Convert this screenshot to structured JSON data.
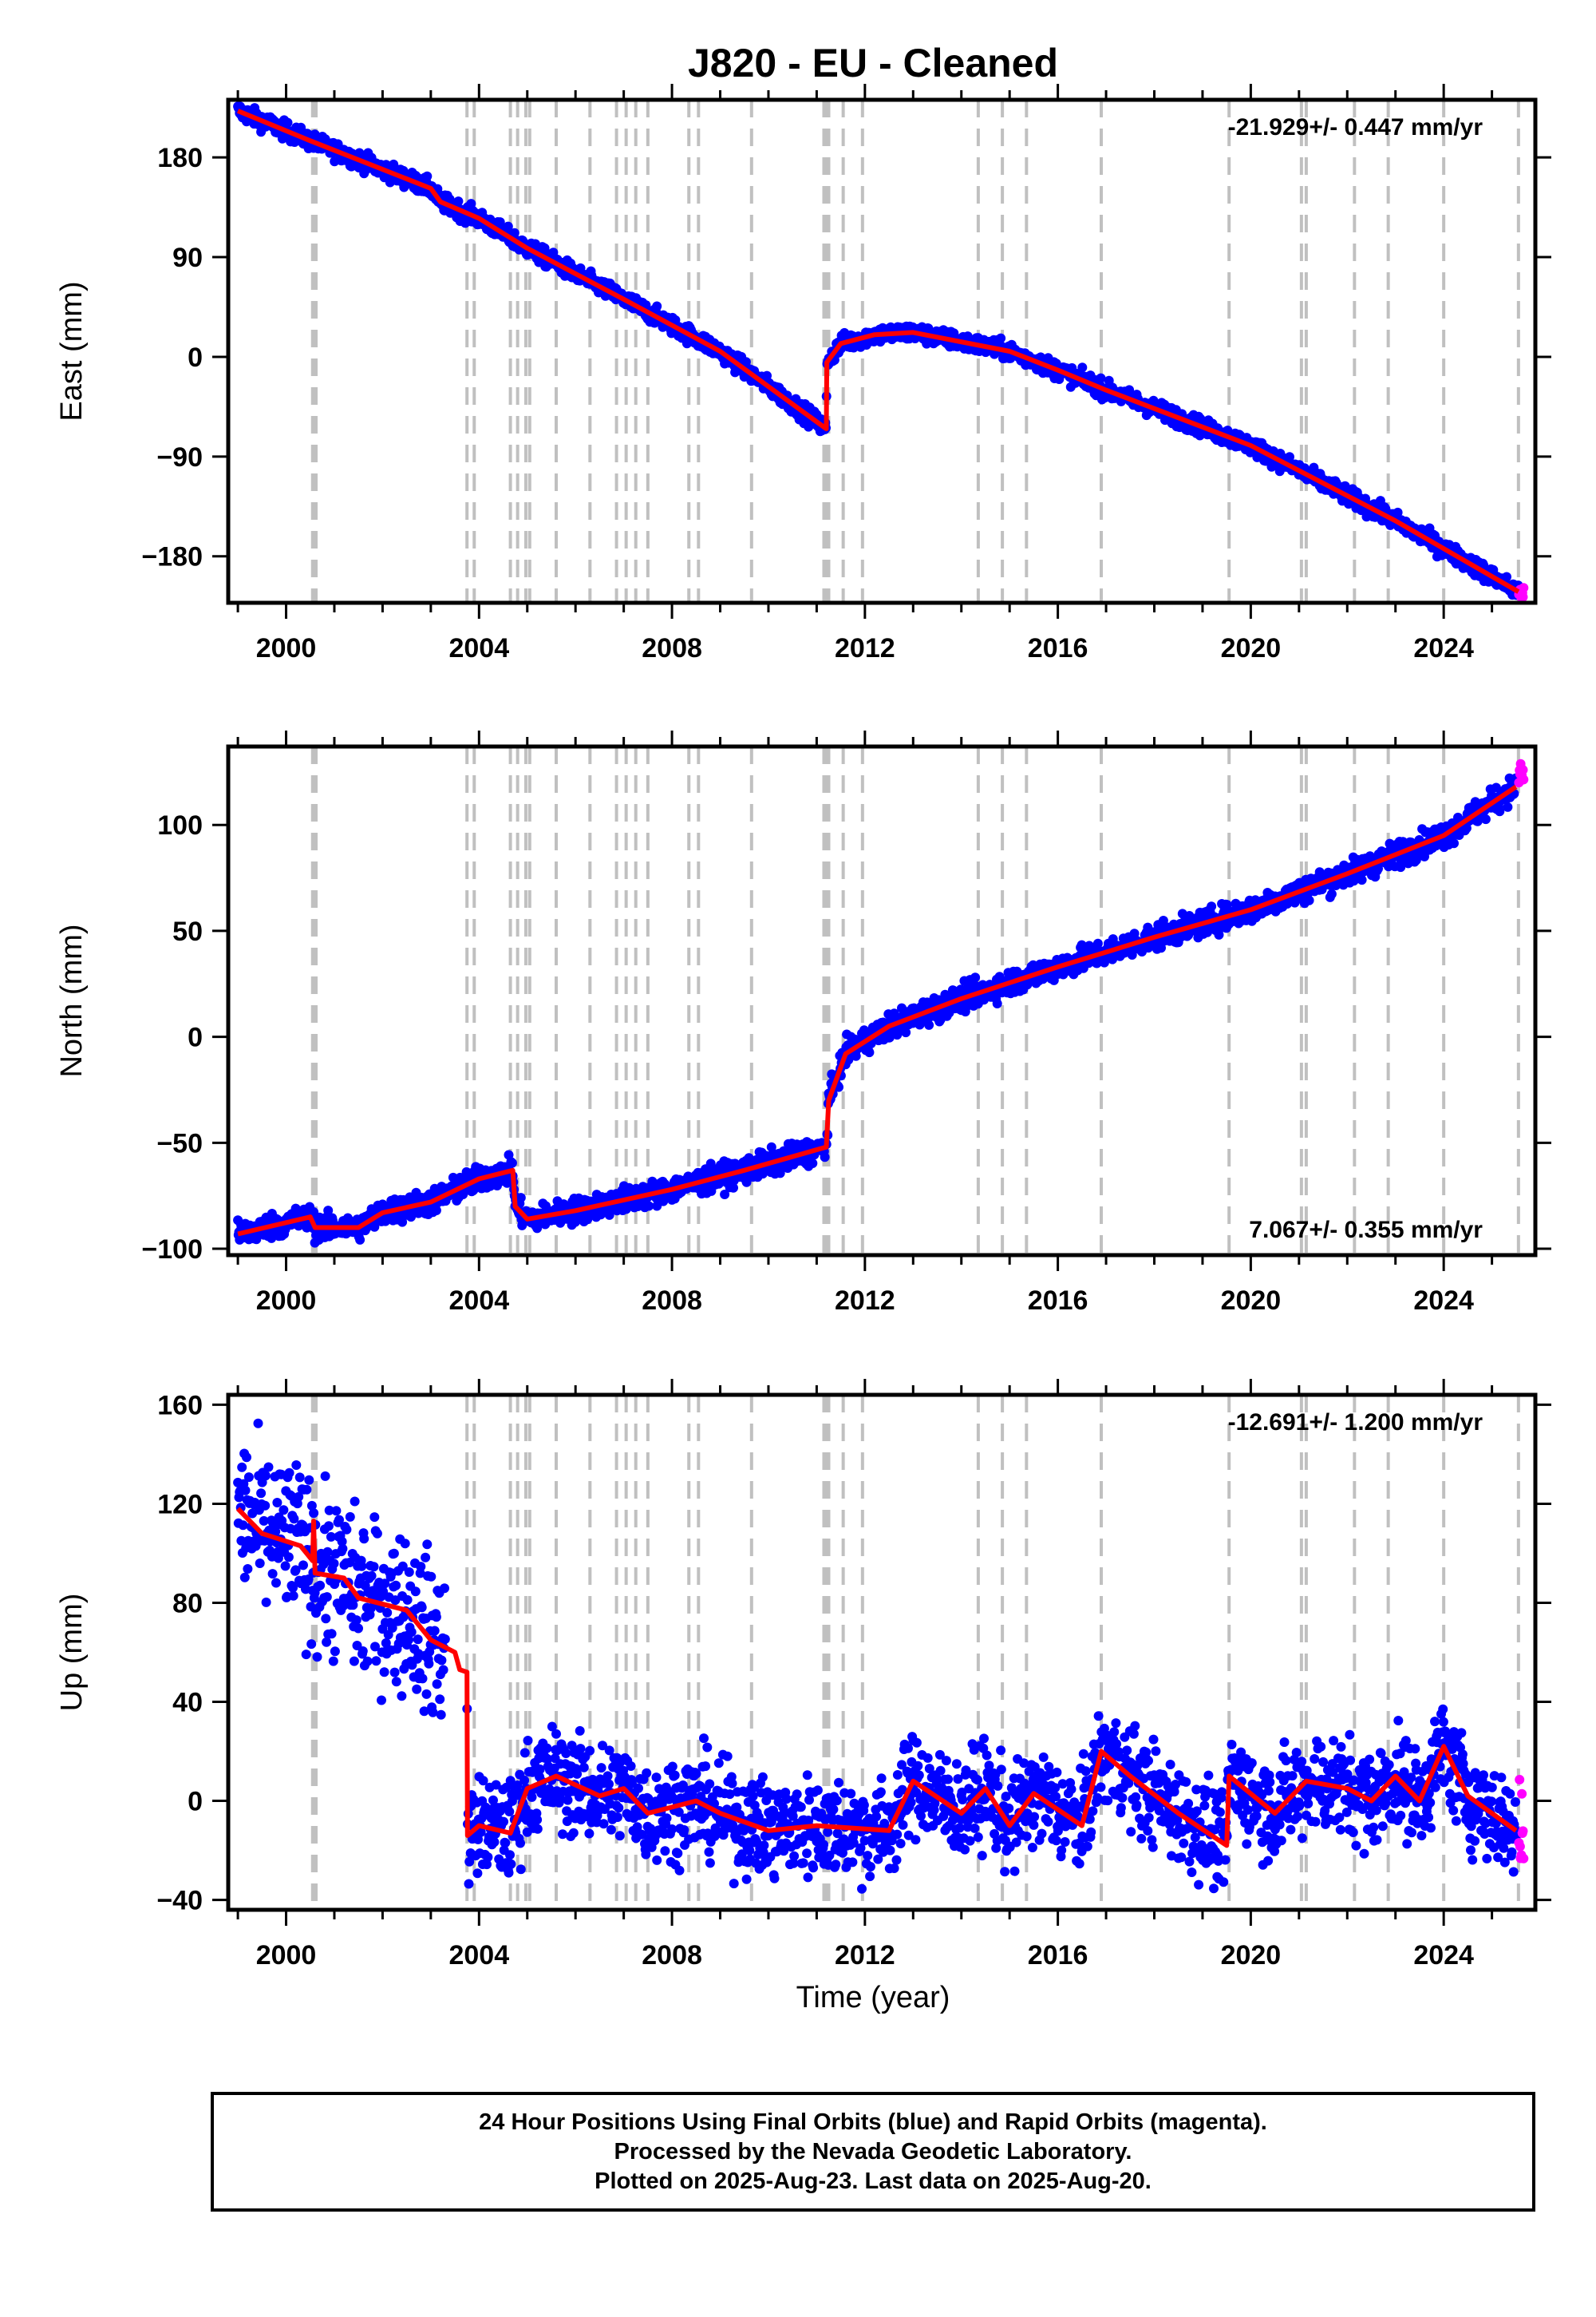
{
  "chart_data": {
    "title": "J820  - EU - Cleaned",
    "xlabel": "Time (year)",
    "xlim": [
      1998.8,
      2025.9
    ],
    "xticks": [
      2000,
      2004,
      2008,
      2012,
      2016,
      2020,
      2024
    ],
    "colors": {
      "final": "#0000ff",
      "rapid": "#ff00ff",
      "model": "#ff0000",
      "steps": "#c0c0c0"
    },
    "steps": [
      2000.55,
      2000.58,
      2000.62,
      2003.75,
      2003.9,
      2004.65,
      2004.8,
      2004.97,
      2005.05,
      2005.6,
      2006.3,
      2006.85,
      2007.05,
      2007.25,
      2007.5,
      2008.35,
      2008.55,
      2009.65,
      2011.15,
      2011.2,
      2011.25,
      2011.55,
      2011.95,
      2014.35,
      2014.85,
      2015.35,
      2016.9,
      2019.55,
      2021.05,
      2021.15,
      2022.15,
      2022.85,
      2024.0,
      2025.55
    ],
    "panels": [
      {
        "type": "scatter",
        "ylabel": "East (mm)",
        "ylim": [
          -222,
          232
        ],
        "yticks": [
          -180,
          -90,
          0,
          90,
          180
        ],
        "ytick_labels": [
          "−180",
          "−90",
          "0",
          "90",
          "180"
        ],
        "rate_label": "-21.929+/- 0.447 mm/yr",
        "rate_pos": "top-right",
        "noise": 4,
        "model": [
          [
            1999.0,
            222
          ],
          [
            2000.5,
            195
          ],
          [
            2003.0,
            152
          ],
          [
            2003.2,
            140
          ],
          [
            2004.0,
            125
          ],
          [
            2005.0,
            98
          ],
          [
            2007.0,
            52
          ],
          [
            2009.0,
            5
          ],
          [
            2011.2,
            -65
          ],
          [
            2011.21,
            -5
          ],
          [
            2011.5,
            12
          ],
          [
            2012.2,
            20
          ],
          [
            2013.0,
            22
          ],
          [
            2015.0,
            5
          ],
          [
            2016.0,
            -12
          ],
          [
            2017.0,
            -30
          ],
          [
            2020.0,
            -80
          ],
          [
            2023.0,
            -148
          ],
          [
            2025.55,
            -212
          ]
        ]
      },
      {
        "type": "scatter",
        "ylabel": "North (mm)",
        "ylim": [
          -103,
          137
        ],
        "yticks": [
          -100,
          -50,
          0,
          50,
          100
        ],
        "ytick_labels": [
          "−100",
          "−50",
          "0",
          "50",
          "100"
        ],
        "rate_label": "7.067+/- 0.355 mm/yr",
        "rate_pos": "bottom-right",
        "noise": 3,
        "model": [
          [
            1999.0,
            -93
          ],
          [
            2000.5,
            -85
          ],
          [
            2000.6,
            -90
          ],
          [
            2001.5,
            -90
          ],
          [
            2002.0,
            -83
          ],
          [
            2003.0,
            -78
          ],
          [
            2004.0,
            -67
          ],
          [
            2004.7,
            -63
          ],
          [
            2004.75,
            -80
          ],
          [
            2005.0,
            -86
          ],
          [
            2006.0,
            -82
          ],
          [
            2008.0,
            -72
          ],
          [
            2009.5,
            -63
          ],
          [
            2011.2,
            -52
          ],
          [
            2011.25,
            -30
          ],
          [
            2011.6,
            -8
          ],
          [
            2012.5,
            5
          ],
          [
            2014.0,
            18
          ],
          [
            2016.0,
            33
          ],
          [
            2017.0,
            40
          ],
          [
            2018.0,
            47
          ],
          [
            2020.0,
            60
          ],
          [
            2022.0,
            77
          ],
          [
            2024.0,
            95
          ],
          [
            2025.5,
            118
          ]
        ]
      },
      {
        "type": "scatter",
        "ylabel": "Up (mm)",
        "ylim": [
          -44,
          164
        ],
        "yticks": [
          -40,
          0,
          40,
          80,
          120,
          160
        ],
        "ytick_labels": [
          "−40",
          "0",
          "40",
          "80",
          "120",
          "160"
        ],
        "rate_label": "-12.691+/- 1.200 mm/yr",
        "rate_pos": "top-right",
        "noise": 10,
        "data_gap": [
          2003.3,
          2003.75
        ],
        "model": [
          [
            1999.0,
            118
          ],
          [
            1999.5,
            108
          ],
          [
            2000.3,
            103
          ],
          [
            2000.55,
            97
          ],
          [
            2000.57,
            113
          ],
          [
            2000.6,
            92
          ],
          [
            2001.2,
            90
          ],
          [
            2001.5,
            82
          ],
          [
            2002.5,
            77
          ],
          [
            2003.0,
            65
          ],
          [
            2003.5,
            60
          ],
          [
            2003.6,
            53
          ],
          [
            2003.75,
            52
          ],
          [
            2003.76,
            -14
          ],
          [
            2004.0,
            -10
          ],
          [
            2004.65,
            -13
          ],
          [
            2005.0,
            5
          ],
          [
            2005.6,
            10
          ],
          [
            2006.5,
            2
          ],
          [
            2007.0,
            5
          ],
          [
            2007.5,
            -5
          ],
          [
            2008.5,
            0
          ],
          [
            2009.0,
            -5
          ],
          [
            2010.0,
            -12
          ],
          [
            2011.0,
            -10
          ],
          [
            2012.5,
            -12
          ],
          [
            2013.0,
            8
          ],
          [
            2014.0,
            -5
          ],
          [
            2014.5,
            5
          ],
          [
            2015.0,
            -10
          ],
          [
            2015.5,
            3
          ],
          [
            2016.5,
            -10
          ],
          [
            2016.9,
            20
          ],
          [
            2017.5,
            10
          ],
          [
            2018.5,
            -5
          ],
          [
            2019.5,
            -18
          ],
          [
            2019.55,
            10
          ],
          [
            2020.5,
            -5
          ],
          [
            2021.15,
            8
          ],
          [
            2022.0,
            5
          ],
          [
            2022.5,
            0
          ],
          [
            2023.0,
            10
          ],
          [
            2023.5,
            0
          ],
          [
            2024.0,
            22
          ],
          [
            2024.5,
            2
          ],
          [
            2025.5,
            -12
          ]
        ]
      }
    ]
  },
  "footer": {
    "line1": "24 Hour Positions Using Final Orbits (blue) and Rapid Orbits (magenta).",
    "line2": "Processed by the Nevada Geodetic Laboratory.",
    "line3": "Plotted on 2025-Aug-23. Last data on 2025-Aug-20."
  }
}
